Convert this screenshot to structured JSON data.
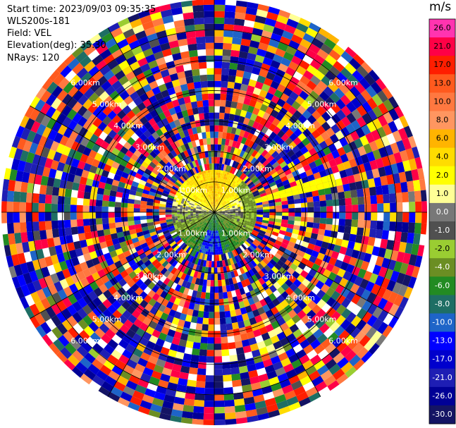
{
  "header": {
    "start_time": "Start time: 2023/09/03 09:35:35",
    "instrument": "WLS200s-181",
    "field": "Field: VEL",
    "elevation": "Elevation(deg): 35.30",
    "nrays": "NRays: 120"
  },
  "colorbar": {
    "unit": "m/s",
    "ticks": [
      "26.0",
      "21.0",
      "17.0",
      "13.0",
      "10.0",
      "8.0",
      "6.0",
      "4.0",
      "2.0",
      "1.0",
      "0.0",
      "-1.0",
      "-2.0",
      "-4.0",
      "-6.0",
      "-8.0",
      "-10.0",
      "-13.0",
      "-17.0",
      "-21.0",
      "-26.0",
      "-30.0"
    ],
    "colors": [
      "#ff34b0",
      "#ff0046",
      "#ff1e00",
      "#ff5a1e",
      "#ff7840",
      "#ff9660",
      "#ffb400",
      "#ffdc00",
      "#ffff00",
      "#ffff96",
      "#787878",
      "#505050",
      "#9acd32",
      "#6b8e23",
      "#228b22",
      "#1e6e64",
      "#1e64c8",
      "#0000ff",
      "#0000cd",
      "#1e1eb4",
      "#000096",
      "#141464"
    ]
  },
  "chart_data": {
    "type": "heatmap",
    "subtype": "polar PPI scan",
    "field": "VEL",
    "units": "m/s",
    "n_rays": 120,
    "range_rings_km": [
      1.0,
      2.0,
      3.0,
      4.0,
      5.0,
      6.0
    ],
    "ring_labels": [
      "1.00km",
      "2.00km",
      "3.00km",
      "4.00km",
      "5.00km",
      "6.00km"
    ],
    "max_range_km": 7.0,
    "value_range": [
      -30.0,
      26.0
    ],
    "valid_data_region_km": 1.4,
    "near_field_pattern": "positive velocities (yellow/orange) toward north, negative (green/teal) toward south, blue near 180°",
    "far_field": "noise beyond ~1.4 km"
  }
}
